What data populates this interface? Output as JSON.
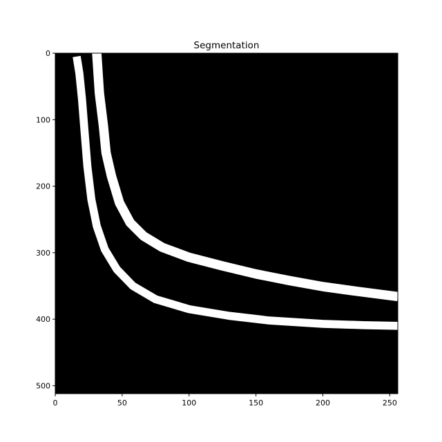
{
  "chart_data": {
    "type": "heatmap",
    "title": "Segmentation",
    "xlabel": "",
    "ylabel": "",
    "xlim": [
      0,
      256
    ],
    "ylim": [
      512,
      0
    ],
    "x_ticks": [
      0,
      50,
      100,
      150,
      200,
      250
    ],
    "y_ticks": [
      0,
      100,
      200,
      300,
      400,
      500
    ],
    "grid": false,
    "background_color": "#000000",
    "foreground_color": "#ffffff",
    "series": [
      {
        "thickness": 6,
        "points": [
          [
            16,
            5
          ],
          [
            18,
            30
          ],
          [
            20,
            70
          ],
          [
            22,
            120
          ],
          [
            24,
            170
          ],
          [
            27,
            220
          ],
          [
            31,
            260
          ],
          [
            37,
            295
          ],
          [
            46,
            325
          ],
          [
            58,
            350
          ],
          [
            75,
            370
          ],
          [
            100,
            385
          ],
          [
            130,
            395
          ],
          [
            160,
            402
          ],
          [
            200,
            407
          ],
          [
            230,
            409
          ],
          [
            256,
            410
          ]
        ]
      },
      {
        "thickness": 7,
        "points": [
          [
            31,
            0
          ],
          [
            32,
            30
          ],
          [
            33,
            60
          ],
          [
            36,
            110
          ],
          [
            38,
            150
          ],
          [
            42,
            185
          ],
          [
            48,
            225
          ],
          [
            56,
            255
          ],
          [
            66,
            275
          ],
          [
            80,
            292
          ],
          [
            100,
            307
          ],
          [
            125,
            320
          ],
          [
            150,
            332
          ],
          [
            175,
            342
          ],
          [
            200,
            351
          ],
          [
            225,
            358
          ],
          [
            256,
            366
          ]
        ]
      }
    ]
  }
}
